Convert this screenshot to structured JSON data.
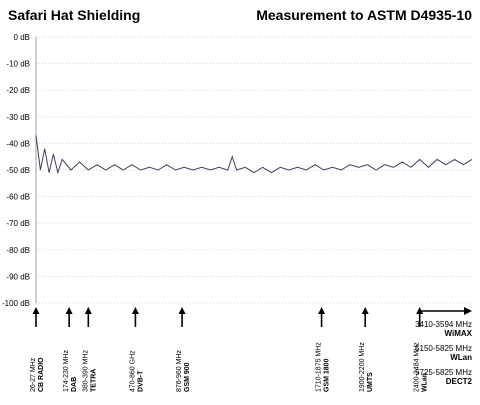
{
  "header": {
    "left_title": "Safari Hat Shielding",
    "right_title": "Measurement to ASTM D4935-10"
  },
  "chart_data": {
    "type": "line",
    "title": "Measurement to ASTM D4935-10",
    "ylabel": "",
    "xlabel": "",
    "yticks": [
      "0 dB",
      "-10 dB",
      "-20 dB",
      "-30 dB",
      "-40 dB",
      "-50 dB",
      "-60 dB",
      "-70 dB",
      "-80 dB",
      "-90 dB",
      "-100 dB"
    ],
    "ytick_values": [
      0,
      -10,
      -20,
      -30,
      -40,
      -50,
      -60,
      -70,
      -80,
      -90,
      -100
    ],
    "ylim": [
      -100,
      0
    ],
    "x_range_fraction": [
      0,
      1
    ],
    "grid": true,
    "series": [
      {
        "color": "#4a3a5a",
        "x": [
          0.0,
          0.01,
          0.02,
          0.03,
          0.04,
          0.05,
          0.06,
          0.08,
          0.1,
          0.12,
          0.14,
          0.16,
          0.18,
          0.2,
          0.22,
          0.24,
          0.26,
          0.28,
          0.3,
          0.32,
          0.34,
          0.36,
          0.38,
          0.4,
          0.42,
          0.44,
          0.45,
          0.46,
          0.48,
          0.5,
          0.52,
          0.54,
          0.56,
          0.58,
          0.6,
          0.62,
          0.64,
          0.66,
          0.68,
          0.7,
          0.72,
          0.74,
          0.76,
          0.78,
          0.8,
          0.82,
          0.84,
          0.86,
          0.88,
          0.9,
          0.92,
          0.94,
          0.96,
          0.98,
          1.0
        ],
        "y": [
          -37,
          -50,
          -42,
          -51,
          -44,
          -51,
          -46,
          -50,
          -47,
          -50,
          -48,
          -50,
          -48,
          -50,
          -48,
          -50,
          -49,
          -50,
          -48,
          -50,
          -49,
          -50,
          -49,
          -50,
          -49,
          -50,
          -45,
          -50,
          -49,
          -51,
          -49,
          -51,
          -49,
          -50,
          -49,
          -50,
          -48,
          -50,
          -49,
          -50,
          -48,
          -49,
          -48,
          -50,
          -48,
          -49,
          -47,
          -49,
          -46,
          -49,
          -46,
          -48,
          -46,
          -48,
          -46
        ]
      }
    ],
    "frequency_markers": [
      {
        "range": "26-27 MHz",
        "name": "CB RADIO",
        "x": 0.0
      },
      {
        "range": "174-230 MHz",
        "name": "DAB",
        "x": 0.076
      },
      {
        "range": "380-390 MHz",
        "name": "TETRA",
        "x": 0.12
      },
      {
        "range": "470-860 GHz",
        "name": "DVB-T",
        "x": 0.228
      },
      {
        "range": "876-960 MHz",
        "name": "GSM 900",
        "x": 0.335
      },
      {
        "range": "1710-1875 MHz",
        "name": "GSM 1800",
        "x": 0.655
      },
      {
        "range": "1900-2200 MHz",
        "name": "UMTS",
        "x": 0.755
      },
      {
        "range": "2400-2484 MHz",
        "name": "WLan",
        "x": 0.88
      }
    ],
    "legend_extra": [
      {
        "range": "3410-3594 MHz",
        "name": "WiMAX"
      },
      {
        "range": "5150-5825 MHz",
        "name": "WLan"
      },
      {
        "range": "5725-5825 MHz",
        "name": "DECT2"
      }
    ]
  }
}
